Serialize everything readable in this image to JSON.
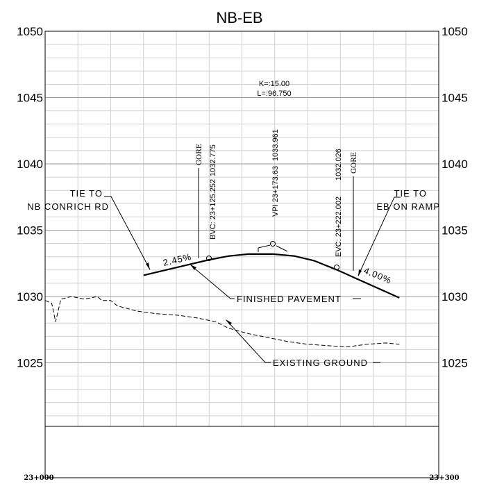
{
  "title": "NB-EB",
  "elevation_labels": [
    "1050",
    "1045",
    "1040",
    "1035",
    "1030",
    "1025"
  ],
  "station_start": "23+000",
  "station_end": "23+300",
  "curve": {
    "k_label": "K=:15.00",
    "l_label": "L=:96.750",
    "bvc_label": "BVC: 23+125.252",
    "bvc_elev": "1032.775",
    "vpi_label": "VPI 23+173.63",
    "vpi_elev": "1033.961",
    "evc_label": "EVC: 23+222.002",
    "evc_elev": "1032.026",
    "grade_in": "2.45%",
    "grade_out": "4.00%"
  },
  "callouts": {
    "tie_left_1": "TIE TO",
    "tie_left_2": "NB CONRICH RD",
    "tie_right_1": "TIE TO",
    "tie_right_2": "EB ON RAMP",
    "gore": "GORE",
    "finished_pavement": "FINISHED PAVEMENT",
    "existing_ground": "EXISTING GROUND"
  },
  "chart_data": {
    "type": "line",
    "xlabel": "",
    "ylabel": "",
    "xlim": [
      23000,
      23300
    ],
    "ylim": [
      1020,
      1050
    ],
    "x_tick_labels": [
      "23+000",
      "23+300"
    ],
    "y_tick_labels": [
      "1050",
      "1045",
      "1040",
      "1035",
      "1030",
      "1025"
    ],
    "series": [
      {
        "name": "FINISHED PAVEMENT",
        "x": [
          23075,
          23125.252,
          23140,
          23155,
          23173.63,
          23190,
          23205,
          23222.002,
          23270
        ],
        "y": [
          1031.6,
          1032.775,
          1033.05,
          1033.2,
          1033.2,
          1033.05,
          1032.7,
          1032.026,
          1029.9
        ]
      },
      {
        "name": "EXISTING GROUND",
        "x": [
          23000,
          23005,
          23008,
          23012,
          23020,
          23030,
          23040,
          23043,
          23050,
          23055,
          23070,
          23085,
          23100,
          23115,
          23130,
          23140,
          23155,
          23170,
          23185,
          23200,
          23215,
          23230,
          23245,
          23260,
          23270
        ],
        "y": [
          1029.7,
          1029.5,
          1028.1,
          1029.8,
          1030.0,
          1029.8,
          1030.0,
          1029.7,
          1029.7,
          1029.3,
          1028.9,
          1028.7,
          1028.6,
          1028.4,
          1028.1,
          1027.6,
          1027.2,
          1026.9,
          1026.6,
          1026.4,
          1026.3,
          1026.2,
          1026.4,
          1026.5,
          1026.4
        ]
      }
    ]
  }
}
